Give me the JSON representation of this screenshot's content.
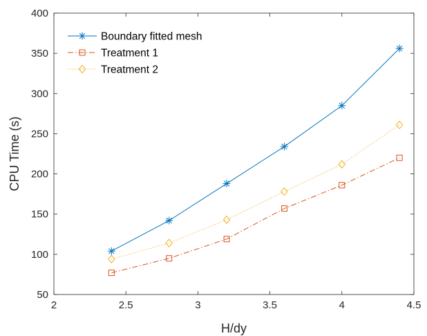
{
  "chart_data": {
    "type": "line",
    "title": "",
    "xlabel": "H/dy",
    "ylabel": "CPU Time (s)",
    "xlim": [
      2,
      4.5
    ],
    "ylim": [
      50,
      400
    ],
    "x_ticks": [
      2,
      2.5,
      3,
      3.5,
      4,
      4.5
    ],
    "x_tick_labels": [
      "2",
      "2.5",
      "3",
      "3.5",
      "4",
      "4.5"
    ],
    "y_ticks": [
      50,
      100,
      150,
      200,
      250,
      300,
      350,
      400
    ],
    "y_tick_labels": [
      "50",
      "100",
      "150",
      "200",
      "250",
      "300",
      "350",
      "400"
    ],
    "grid": false,
    "legend_position": "top-left",
    "x": [
      2.4,
      2.8,
      3.2,
      3.6,
      4.0,
      4.4
    ],
    "series": [
      {
        "name": "Boundary fitted mesh",
        "values": [
          104,
          142,
          188,
          234,
          285,
          356
        ],
        "color": "#0072BD",
        "line_style": "solid",
        "marker": "asterisk"
      },
      {
        "name": "Treatment 1",
        "values": [
          77,
          95,
          119,
          157,
          186,
          220
        ],
        "color": "#D95319",
        "line_style": "dashdot",
        "marker": "square"
      },
      {
        "name": "Treatment 2",
        "values": [
          94,
          114,
          143,
          178,
          212,
          261
        ],
        "color": "#EDB120",
        "line_style": "dotted",
        "marker": "diamond"
      }
    ]
  }
}
